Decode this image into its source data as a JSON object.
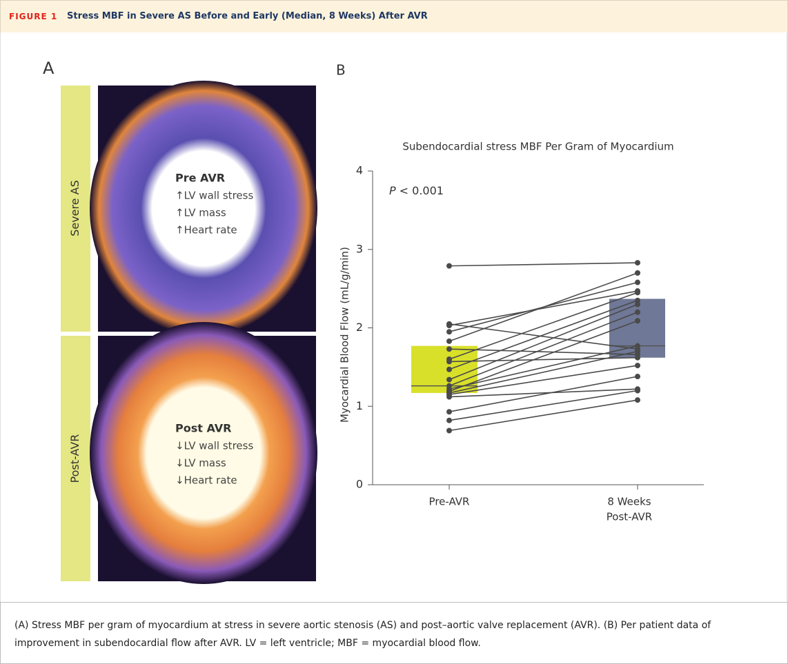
{
  "header": {
    "figure_label": "FIGURE 1",
    "title": "Stress MBF in Severe AS Before and Early (Median, 8 Weeks) After AVR"
  },
  "panel_a": {
    "label": "A",
    "panels": [
      {
        "side_label": "Severe AS",
        "heading": "Pre AVR",
        "lines": [
          "↑LV wall stress",
          "↑LV mass",
          "↑Heart rate"
        ]
      },
      {
        "side_label": "Post-AVR",
        "heading": "Post AVR",
        "lines": [
          "↓LV wall stress",
          "↓LV mass",
          "↓Heart rate"
        ]
      }
    ]
  },
  "panel_b": {
    "label": "B"
  },
  "chart_data": {
    "type": "paired",
    "title": "Subendocardial stress MBF Per Gram of Myocardium",
    "y_label": "Myocardial Blood Flow (mL/g/min)",
    "annotation": {
      "italic": "P",
      "text": "< 0.001"
    },
    "categories": [
      [
        "Pre-AVR"
      ],
      [
        "8 Weeks",
        "Post-AVR"
      ]
    ],
    "ylim": [
      0,
      4
    ],
    "yticks": [
      0,
      1,
      2,
      3,
      4
    ],
    "line_color": "#4a4a4a",
    "boxes": [
      {
        "q1": 1.17,
        "median": 1.26,
        "q3": 1.77,
        "color": "#d8e02a"
      },
      {
        "q1": 1.62,
        "median": 1.77,
        "q3": 2.37,
        "color": "#6f7896"
      }
    ],
    "patients": [
      [
        2.79,
        2.83
      ],
      [
        2.05,
        1.73
      ],
      [
        2.03,
        2.47
      ],
      [
        1.95,
        2.58
      ],
      [
        1.83,
        2.7
      ],
      [
        1.73,
        1.66
      ],
      [
        1.6,
        2.45
      ],
      [
        1.57,
        1.62
      ],
      [
        1.47,
        2.35
      ],
      [
        1.34,
        2.3
      ],
      [
        1.26,
        2.2
      ],
      [
        1.22,
        1.77
      ],
      [
        1.19,
        2.09
      ],
      [
        1.17,
        1.7
      ],
      [
        1.15,
        1.52
      ],
      [
        1.12,
        1.22
      ],
      [
        0.93,
        1.38
      ],
      [
        0.82,
        1.2
      ],
      [
        0.69,
        1.08
      ]
    ]
  },
  "caption": "(A) Stress MBF per gram of myocardium at stress in severe aortic stenosis (AS) and post–aortic valve replacement (AVR). (B) Per patient data of improvement in subendocardial flow after AVR. LV = left ventricle; MBF = myocardial blood flow."
}
